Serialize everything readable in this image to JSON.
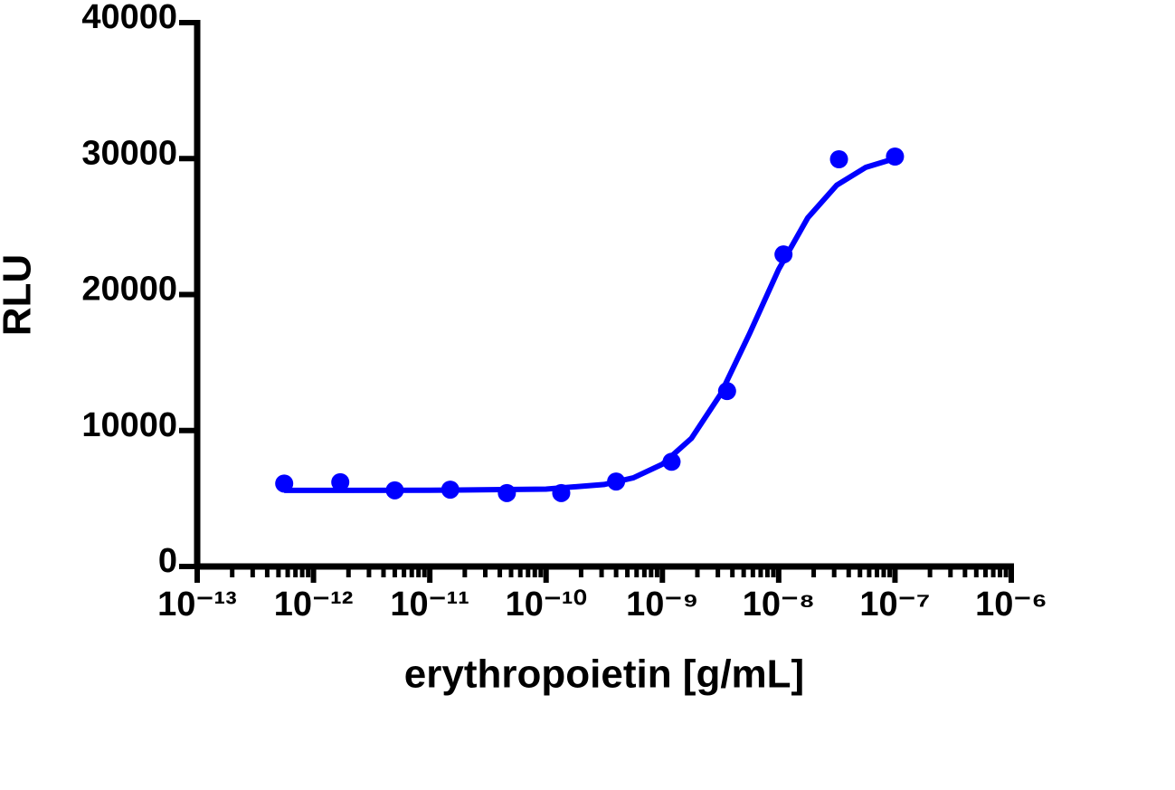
{
  "chart_data": {
    "type": "scatter",
    "x_label": "erythropoietin [g/mL]",
    "y_label": "RLU",
    "x_scale": "log",
    "xlim": [
      1e-13,
      1e-06
    ],
    "xticks": [
      {
        "value": 1e-13,
        "label": "10⁻¹³"
      },
      {
        "value": 1e-12,
        "label": "10⁻¹²"
      },
      {
        "value": 1e-11,
        "label": "10⁻¹¹"
      },
      {
        "value": 1e-10,
        "label": "10⁻¹⁰"
      },
      {
        "value": 1e-09,
        "label": "10⁻⁹"
      },
      {
        "value": 1e-08,
        "label": "10⁻⁸"
      },
      {
        "value": 1e-07,
        "label": "10⁻⁷"
      },
      {
        "value": 1e-06,
        "label": "10⁻⁶"
      }
    ],
    "ylim": [
      0,
      40000
    ],
    "yticks": [
      0,
      10000,
      20000,
      30000,
      40000
    ],
    "series": [
      {
        "style": "points",
        "color": "#0000ff",
        "x": [
          5.6e-13,
          1.7e-12,
          5e-12,
          1.5e-11,
          4.6e-11,
          1.35e-10,
          4e-10,
          1.2e-09,
          3.6e-09,
          1.1e-08,
          3.3e-08,
          1e-07
        ],
        "values": [
          6100,
          6200,
          5600,
          5650,
          5400,
          5400,
          6250,
          7700,
          12900,
          22950,
          29950,
          30150
        ]
      },
      {
        "style": "line",
        "color": "#0000ff",
        "x": [
          5.6e-13,
          1e-11,
          1e-10,
          3.16e-10,
          5.62e-10,
          1e-09,
          1.78e-09,
          3.16e-09,
          5.62e-09,
          1e-08,
          1.78e-08,
          3.16e-08,
          5.62e-08,
          1e-07
        ],
        "values": [
          5600,
          5604,
          5693,
          6030,
          6520,
          7520,
          9430,
          12660,
          17130,
          21860,
          25650,
          28050,
          29360,
          30010
        ]
      }
    ]
  }
}
